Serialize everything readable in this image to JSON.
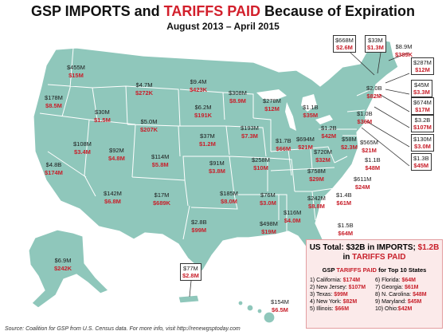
{
  "title_main": "GSP IMPORTS and ",
  "title_red": "TARIFFS PAID",
  "title_end": " Because of Expiration",
  "subtitle": "August 2013 – April 2015",
  "colors": {
    "land": "#8fc7bb",
    "tariff": "#c8202b",
    "summary_bg": "#fbeaea"
  },
  "states": [
    {
      "key": "WA",
      "imports": "$455M",
      "tariffs": "$15M"
    },
    {
      "key": "OR",
      "imports": "$178M",
      "tariffs": "$8.5M"
    },
    {
      "key": "ID",
      "imports": "$30M",
      "tariffs": "$1.5M"
    },
    {
      "key": "MT",
      "imports": "$4.7M",
      "tariffs": "$272K"
    },
    {
      "key": "WY",
      "imports": "$5.0M",
      "tariffs": "$207K"
    },
    {
      "key": "ND",
      "imports": "$9.4M",
      "tariffs": "$423K"
    },
    {
      "key": "SD",
      "imports": "$6.2M",
      "tariffs": "$191K"
    },
    {
      "key": "MN",
      "imports": "$308M",
      "tariffs": "$8.9M"
    },
    {
      "key": "WI",
      "imports": "$278M",
      "tariffs": "$12M"
    },
    {
      "key": "MI",
      "imports": "$1.1B",
      "tariffs": "$35M"
    },
    {
      "key": "CA",
      "imports": "$4.8B",
      "tariffs": "$174M"
    },
    {
      "key": "NV",
      "imports": "$108M",
      "tariffs": "$3.4M"
    },
    {
      "key": "UT",
      "imports": "$92M",
      "tariffs": "$4.8M"
    },
    {
      "key": "CO",
      "imports": "$114M",
      "tariffs": "$5.8M"
    },
    {
      "key": "NE",
      "imports": "$37M",
      "tariffs": "$1.2M"
    },
    {
      "key": "IA",
      "imports": "$193M",
      "tariffs": "$7.3M"
    },
    {
      "key": "IL",
      "imports": "$1.7B",
      "tariffs": "$66M"
    },
    {
      "key": "IN",
      "imports": "$694M",
      "tariffs": "$21M"
    },
    {
      "key": "OH",
      "imports": "$1.2B",
      "tariffs": "$42M"
    },
    {
      "key": "PA",
      "imports": "$1.0B",
      "tariffs": "$36M"
    },
    {
      "key": "KS",
      "imports": "$91M",
      "tariffs": "$3.8M"
    },
    {
      "key": "MO",
      "imports": "$258M",
      "tariffs": "$10M"
    },
    {
      "key": "KY",
      "imports": "$720M",
      "tariffs": "$32M"
    },
    {
      "key": "WV",
      "imports": "$58M",
      "tariffs": "$2.3M"
    },
    {
      "key": "VA",
      "imports": "$565M",
      "tariffs": "$21M"
    },
    {
      "key": "AZ",
      "imports": "$142M",
      "tariffs": "$6.8M"
    },
    {
      "key": "NM",
      "imports": "$17M",
      "tariffs": "$689K"
    },
    {
      "key": "OK",
      "imports": "$185M",
      "tariffs": "$8.0M"
    },
    {
      "key": "TN",
      "imports": "$758M",
      "tariffs": "$29M"
    },
    {
      "key": "NC",
      "imports": "$1.1B",
      "tariffs": "$48M"
    },
    {
      "key": "AR",
      "imports": "$76M",
      "tariffs": "$3.0M"
    },
    {
      "key": "SC",
      "imports": "$611M",
      "tariffs": "$24M"
    },
    {
      "key": "MS",
      "imports": "$116M",
      "tariffs": "$4.0M"
    },
    {
      "key": "AL",
      "imports": "$242M",
      "tariffs": "$8.8M"
    },
    {
      "key": "GA",
      "imports": "$1.4B",
      "tariffs": "$61M"
    },
    {
      "key": "TX",
      "imports": "$2.8B",
      "tariffs": "$99M"
    },
    {
      "key": "LA",
      "imports": "$498M",
      "tariffs": "$19M"
    },
    {
      "key": "FL",
      "imports": "$1.5B",
      "tariffs": "$64M"
    },
    {
      "key": "AK",
      "imports": "$6.9M",
      "tariffs": "$242K"
    },
    {
      "key": "HI",
      "imports": "$154M",
      "tariffs": "$6.5M"
    }
  ],
  "callouts": [
    {
      "key": "VT",
      "imports": "$668M",
      "tariffs": "$2.6M"
    },
    {
      "key": "NH",
      "imports": "$33M",
      "tariffs": "$1.3M"
    },
    {
      "key": "ME",
      "imports": "$8.9M",
      "tariffs": "$389K"
    },
    {
      "key": "MA",
      "imports": "$287M",
      "tariffs": "$12M"
    },
    {
      "key": "RI",
      "imports": "$45M",
      "tariffs": "$3.3M"
    },
    {
      "key": "CT",
      "imports": "$674M",
      "tariffs": "$17M"
    },
    {
      "key": "NY",
      "imports": "$2.0B",
      "tariffs": "$82M"
    },
    {
      "key": "NJ",
      "imports": "$3.2B",
      "tariffs": "$107M"
    },
    {
      "key": "DE",
      "imports": "$130M",
      "tariffs": "$3.0M"
    },
    {
      "key": "MD",
      "imports": "$1.3B",
      "tariffs": "$45M"
    },
    {
      "key": "PR",
      "imports": "$77M",
      "tariffs": "$2.8M"
    }
  ],
  "summary": {
    "head1": "US Total: $32B in IMPORTS; ",
    "head1_red": "$1.2B",
    "head2_pre": "in ",
    "head2_red": "TARIFFS PAID",
    "sub_pre": "GSP ",
    "sub_red": "TARIFFS PAID",
    "sub_post": " for Top 10 States",
    "top10": [
      {
        "label": "1) California: ",
        "value": "$174M"
      },
      {
        "label": "6) Florida: ",
        "value": "$64M"
      },
      {
        "label": "2) New Jersey: ",
        "value": "$107M"
      },
      {
        "label": "7) Georgia: ",
        "value": "$61M"
      },
      {
        "label": "3) Texas: ",
        "value": "$99M"
      },
      {
        "label": "8) N. Carolina: ",
        "value": "$48M"
      },
      {
        "label": "4) New York: ",
        "value": "$82M"
      },
      {
        "label": "9) Maryland: ",
        "value": "$45M"
      },
      {
        "label": "5) Illinois: ",
        "value": "$66M"
      },
      {
        "label": "10) Ohio:",
        "value": "$42M"
      }
    ]
  },
  "source": "Source: Coalition for GSP from U.S. Census data. For more info, visit http://renewgsptoday.com"
}
